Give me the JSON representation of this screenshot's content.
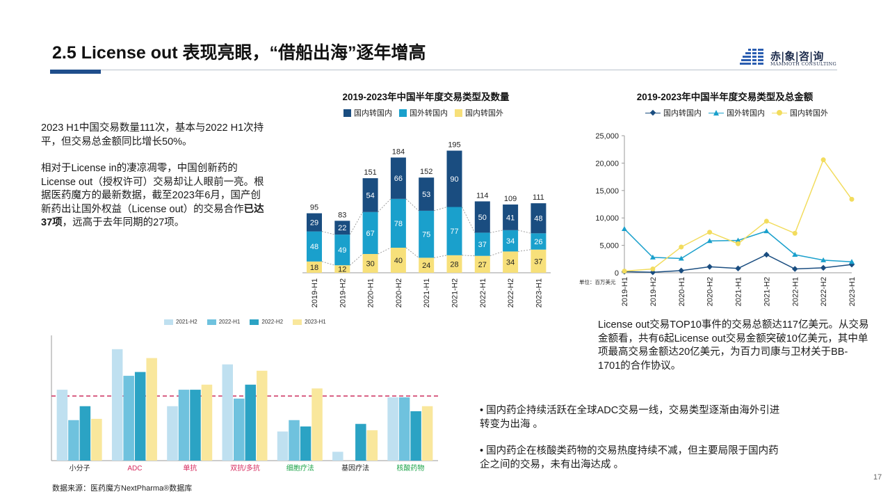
{
  "header": {
    "title": "2.5 License out 表现亮眼，“借船出海”逐年增高"
  },
  "logo": {
    "name_cn": "赤|象|咨|询",
    "name_en": "MAMMOTH CONSULTING"
  },
  "left_text": {
    "para1": "2023 H1中国交易数量111次，基本与2022 H1次持平，但交易总金额同比增长50%。",
    "para2_a": "相对于License in的凄凉凋零，中国创新药的License out（授权许可）交易却让人眼前一亮。根据医药魔方的最新数据，截至2023年6月，国产创新药出让国外权益（License out）的交易合作",
    "para2_bold": "已达37项",
    "para2_b": "，远高于去年同期的27项。"
  },
  "right_text": "License out交易TOP10事件的交易总额达117亿美元。从交易金额看，共有6起License out交易金额突破10亿美元，其中单项最高交易金额达20亿美元，为百力司康与卫材关于BB-1701的合作协议。",
  "bullets": [
    "• 国内药企持续活跃在全球ADC交易一线，交易类型逐渐由海外引进转变为出海 。",
    "• 国内药企在核酸类药物的交易热度持续不减，但主要局限于国内药企之间的交易，未有出海达成 。"
  ],
  "source": "数据来源：医药魔方NextPharma®数据库",
  "page_number": "17",
  "colors": {
    "domestic": "#1a4d80",
    "in_license": "#1aa0cc",
    "out_license": "#f7e07a",
    "dark_blue": "#1f4e8c",
    "dash": "#cc2f5e"
  },
  "chart_data": [
    {
      "type": "bar",
      "stacked": true,
      "title": "2019-2023年中国半年度交易类型及数量",
      "categories": [
        "2019-H1",
        "2019-H2",
        "2020-H1",
        "2020-H2",
        "2021-H1",
        "2021-H2",
        "2022-H1",
        "2022-H2",
        "2023-H1"
      ],
      "series": [
        {
          "name": "国内转国内",
          "values": [
            29,
            22,
            54,
            66,
            53,
            90,
            50,
            41,
            48
          ]
        },
        {
          "name": "国外转国内",
          "values": [
            48,
            49,
            67,
            78,
            75,
            77,
            37,
            34,
            26
          ]
        },
        {
          "name": "国内转国外",
          "values": [
            18,
            12,
            30,
            40,
            24,
            28,
            27,
            34,
            37
          ]
        }
      ],
      "totals": [
        95,
        83,
        151,
        184,
        152,
        195,
        114,
        109,
        111
      ],
      "legend_position": "top"
    },
    {
      "type": "line",
      "title": "2019-2023年中国半年度交易类型及总金额",
      "x": [
        "2019-H1",
        "2019-H2",
        "2020-H1",
        "2020-H2",
        "2021-H1",
        "2021-H2",
        "2022-H1",
        "2022-H2",
        "2023-H1"
      ],
      "series": [
        {
          "name": "国内转国内",
          "values": [
            200,
            100,
            400,
            1100,
            800,
            3300,
            700,
            900,
            1500
          ]
        },
        {
          "name": "国外转国内",
          "values": [
            8000,
            2800,
            2600,
            5800,
            5900,
            7600,
            3300,
            2300,
            2000
          ]
        },
        {
          "name": "国内转国外",
          "values": [
            300,
            700,
            4700,
            7400,
            5300,
            9400,
            7200,
            20600,
            13400
          ]
        }
      ],
      "yticks": [
        "0",
        "5,000",
        "10,000",
        "15,000",
        "20,000",
        "25,000"
      ],
      "ylim": [
        0,
        25000
      ],
      "unit_note": "单位：百万美元",
      "legend_position": "top"
    },
    {
      "type": "bar",
      "categories": [
        "小分子",
        "ADC",
        "单抗",
        "双抗/多抗",
        "细胞疗法",
        "基因疗法",
        "核酸药物"
      ],
      "category_colors": [
        "#222222",
        "#d6285c",
        "#d6285c",
        "#d6285c",
        "#1ea44a",
        "#222222",
        "#1ea44a"
      ],
      "series": [
        {
          "name": "2021-H2",
          "values": [
            56,
            88,
            43,
            76,
            23,
            7,
            50
          ]
        },
        {
          "name": "2022-H1",
          "values": [
            32,
            67,
            56,
            49,
            32,
            0,
            50
          ]
        },
        {
          "name": "2022-H2",
          "values": [
            43,
            70,
            56,
            60,
            27,
            29,
            39
          ]
        },
        {
          "name": "2023-H1",
          "values": [
            33,
            81,
            60,
            71,
            57,
            24,
            43
          ]
        }
      ],
      "reference_line": 51,
      "ylim": [
        0,
        100
      ],
      "legend_position": "top"
    }
  ]
}
